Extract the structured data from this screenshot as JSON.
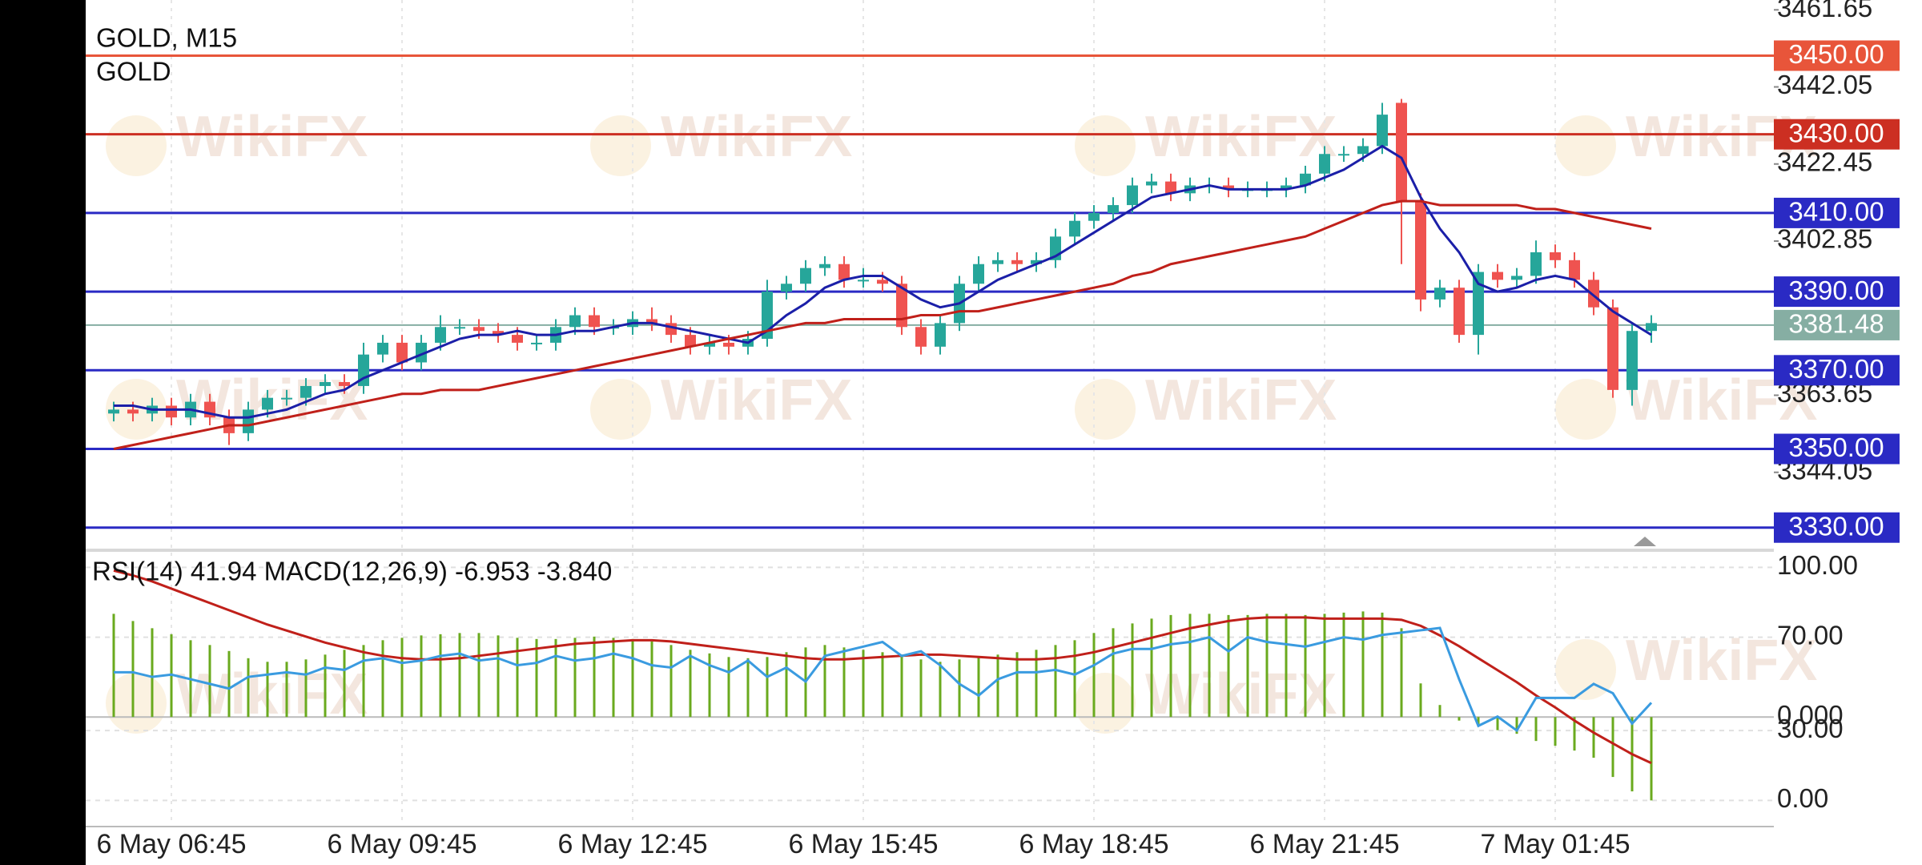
{
  "watermark": "WikiFX",
  "chart_data": [
    {
      "type": "candlestick",
      "title": "GOLD, M15",
      "subtitle": "GOLD",
      "categories": [
        null,
        null,
        null,
        "6 May 06:45",
        null,
        null,
        null,
        null,
        null,
        null,
        null,
        null,
        null,
        null,
        null,
        "6 May 09:45",
        null,
        null,
        null,
        null,
        null,
        null,
        null,
        null,
        null,
        null,
        null,
        "6 May 12:45",
        null,
        null,
        null,
        null,
        null,
        null,
        null,
        null,
        null,
        null,
        null,
        "6 May 15:45",
        null,
        null,
        null,
        null,
        null,
        null,
        null,
        null,
        null,
        null,
        null,
        "6 May 18:45",
        null,
        null,
        null,
        null,
        null,
        null,
        null,
        null,
        null,
        null,
        null,
        "6 May 21:45",
        null,
        null,
        null,
        null,
        null,
        null,
        null,
        null,
        null,
        null,
        null,
        "7 May 01:45",
        null,
        null,
        null,
        null,
        null
      ],
      "open": [
        3359,
        3360,
        3359,
        3361,
        3358,
        3362,
        3358,
        3354,
        3360,
        3363,
        3363,
        3366,
        3367,
        3366,
        3374,
        3377,
        3372,
        3377,
        3381,
        3381,
        3380,
        3379,
        3377,
        3377,
        3381,
        3384,
        3381,
        3381,
        3383,
        3382,
        3379,
        3376,
        3377,
        3376,
        3378,
        3390,
        3392,
        3396,
        3397,
        3393,
        3393,
        3392,
        3381,
        3376,
        3382,
        3392,
        3397,
        3398,
        3397,
        3398,
        3404,
        3408,
        3410,
        3412,
        3417,
        3418,
        3415,
        3417,
        3417,
        3416,
        3416,
        3416,
        3417,
        3420,
        3425,
        3425,
        3427,
        3438,
        3413,
        3388,
        3391,
        3379,
        3395,
        3393,
        3394,
        3400,
        3398,
        3393,
        3386,
        3365,
        3380
      ],
      "high": [
        3362,
        3362,
        3363,
        3363,
        3364,
        3364,
        3360,
        3362,
        3365,
        3365,
        3368,
        3369,
        3369,
        3377,
        3379,
        3379,
        3379,
        3384,
        3383,
        3383,
        3382,
        3381,
        3379,
        3383,
        3386,
        3386,
        3383,
        3385,
        3386,
        3384,
        3381,
        3379,
        3379,
        3380,
        3393,
        3394,
        3398,
        3399,
        3399,
        3396,
        3395,
        3394,
        3383,
        3384,
        3394,
        3399,
        3400,
        3400,
        3400,
        3406,
        3410,
        3412,
        3414,
        3419,
        3420,
        3420,
        3419,
        3419,
        3419,
        3418,
        3418,
        3419,
        3422,
        3427,
        3427,
        3429,
        3438,
        3439,
        3415,
        3393,
        3393,
        3397,
        3397,
        3396,
        3403,
        3402,
        3400,
        3395,
        3388,
        3382,
        3384
      ],
      "low": [
        3357,
        3357,
        3357,
        3356,
        3356,
        3356,
        3351,
        3352,
        3358,
        3361,
        3361,
        3364,
        3364,
        3364,
        3372,
        3370,
        3370,
        3375,
        3379,
        3378,
        3377,
        3375,
        3375,
        3375,
        3379,
        3379,
        3379,
        3379,
        3380,
        3377,
        3374,
        3374,
        3374,
        3374,
        3376,
        3388,
        3390,
        3394,
        3391,
        3391,
        3390,
        3379,
        3374,
        3374,
        3380,
        3390,
        3395,
        3395,
        3395,
        3396,
        3402,
        3406,
        3408,
        3410,
        3415,
        3413,
        3413,
        3415,
        3414,
        3414,
        3414,
        3414,
        3415,
        3418,
        3423,
        3423,
        3425,
        3397,
        3385,
        3386,
        3377,
        3374,
        3391,
        3391,
        3392,
        3396,
        3391,
        3384,
        3363,
        3361,
        3377
      ],
      "close": [
        3360,
        3359,
        3361,
        3358,
        3362,
        3358,
        3354,
        3360,
        3363,
        3363,
        3366,
        3367,
        3366,
        3374,
        3377,
        3372,
        3377,
        3381,
        3381,
        3380,
        3379,
        3377,
        3377,
        3381,
        3384,
        3381,
        3381,
        3383,
        3382,
        3379,
        3376,
        3377,
        3376,
        3378,
        3390,
        3392,
        3396,
        3397,
        3393,
        3393,
        3392,
        3381,
        3376,
        3382,
        3392,
        3397,
        3398,
        3397,
        3398,
        3404,
        3408,
        3410,
        3412,
        3417,
        3418,
        3415,
        3417,
        3417,
        3416,
        3416,
        3416,
        3417,
        3420,
        3425,
        3425,
        3427,
        3435,
        3413,
        3388,
        3391,
        3379,
        3395,
        3393,
        3394,
        3400,
        3398,
        3393,
        3386,
        3365,
        3380,
        3382
      ],
      "up_color": "#26a69a",
      "down_color": "#ef5350",
      "series": [
        {
          "color": "#1b1fa8",
          "values": [
            3361,
            3361,
            3360,
            3360,
            3360,
            3359,
            3358,
            3358,
            3359,
            3360,
            3362,
            3364,
            3365,
            3368,
            3370,
            3372,
            3374,
            3376,
            3378,
            3379,
            3379,
            3380,
            3379,
            3379,
            3380,
            3380,
            3381,
            3382,
            3382,
            3381,
            3380,
            3379,
            3378,
            3377,
            3380,
            3384,
            3387,
            3391,
            3393,
            3394,
            3394,
            3391,
            3388,
            3386,
            3387,
            3390,
            3393,
            3395,
            3397,
            3399,
            3402,
            3405,
            3408,
            3411,
            3414,
            3415,
            3416,
            3417,
            3416,
            3416,
            3416,
            3416,
            3417,
            3419,
            3421,
            3424,
            3427,
            3424,
            3414,
            3406,
            3400,
            3392,
            3390,
            3391,
            3393,
            3394,
            3393,
            3389,
            3385,
            3382,
            3379
          ]
        },
        {
          "color": "#c0201a",
          "values": [
            3350,
            3351,
            3352,
            3353,
            3354,
            3355,
            3356,
            3356,
            3357,
            3358,
            3359,
            3360,
            3361,
            3362,
            3363,
            3364,
            3364,
            3365,
            3365,
            3365,
            3366,
            3367,
            3368,
            3369,
            3370,
            3371,
            3372,
            3373,
            3374,
            3375,
            3376,
            3377,
            3378,
            3379,
            3380,
            3381,
            3382,
            3382,
            3383,
            3383,
            3383,
            3383,
            3384,
            3384,
            3385,
            3385,
            3386,
            3387,
            3388,
            3389,
            3390,
            3391,
            3392,
            3394,
            3395,
            3397,
            3398,
            3399,
            3400,
            3401,
            3402,
            3403,
            3404,
            3406,
            3408,
            3410,
            3412,
            3413,
            3413,
            3412,
            3412,
            3412,
            3412,
            3412,
            3411,
            3411,
            3410,
            3409,
            3408,
            3407,
            3406
          ]
        }
      ],
      "ylim": [
        3324.85,
        3464.15
      ],
      "yticks": [
        3461.65,
        3442.05,
        3422.45,
        3402.85,
        3363.65,
        3344.05
      ],
      "levels": [
        {
          "value": 3450,
          "label": "3450.00",
          "color": "#e8553a"
        },
        {
          "value": 3430,
          "label": "3430.00",
          "color": "#cc2f22"
        },
        {
          "value": 3410,
          "label": "3410.00",
          "color": "#2a2ac4"
        },
        {
          "value": 3390,
          "label": "3390.00",
          "color": "#2a2ac4"
        },
        {
          "value": 3370,
          "label": "3370.00",
          "color": "#2a2ac4"
        },
        {
          "value": 3350,
          "label": "3350.00",
          "color": "#2a2ac4"
        },
        {
          "value": 3330,
          "label": "3330.00",
          "color": "#2a2ac4"
        }
      ],
      "price": {
        "value": 3381.48,
        "color": "#86aea3"
      }
    },
    {
      "type": "indicator",
      "title": "RSI(14) 41.94 MACD(12,26,9) -6.953 -3.840",
      "series": [
        {
          "type": "bar",
          "axis": "y2",
          "color": "#6aaa1e",
          "values": [
            8.6,
            8.0,
            7.4,
            6.9,
            6.4,
            6.0,
            5.5,
            4.9,
            4.6,
            4.6,
            4.8,
            5.2,
            5.6,
            6.0,
            6.4,
            6.6,
            6.8,
            6.9,
            7.0,
            7.0,
            6.8,
            6.6,
            6.5,
            6.5,
            6.6,
            6.7,
            6.6,
            6.5,
            6.3,
            6.0,
            5.6,
            5.3,
            5.0,
            4.9,
            5.0,
            5.4,
            5.8,
            6.0,
            5.8,
            5.6,
            5.4,
            5.2,
            4.8,
            4.6,
            4.8,
            5.0,
            5.2,
            5.4,
            5.6,
            6.0,
            6.4,
            7.0,
            7.4,
            7.8,
            8.2,
            8.5,
            8.6,
            8.6,
            8.5,
            8.5,
            8.6,
            8.6,
            8.5,
            8.6,
            8.7,
            8.8,
            8.7,
            7.4,
            2.8,
            1.0,
            -0.3,
            -0.6,
            -1.1,
            -1.4,
            -2.0,
            -2.4,
            -2.8,
            -3.4,
            -5.0,
            -6.2,
            -6.953
          ]
        },
        {
          "type": "line",
          "axis": "y2",
          "color": "#c0201a",
          "values": [
            12.2,
            11.8,
            11.3,
            10.7,
            10.1,
            9.5,
            8.9,
            8.3,
            7.7,
            7.2,
            6.7,
            6.2,
            5.8,
            5.4,
            5.1,
            4.9,
            4.8,
            4.8,
            4.9,
            5.1,
            5.3,
            5.5,
            5.7,
            5.9,
            6.1,
            6.2,
            6.3,
            6.4,
            6.4,
            6.3,
            6.1,
            5.9,
            5.7,
            5.5,
            5.3,
            5.1,
            4.9,
            4.8,
            4.8,
            4.9,
            5.0,
            5.1,
            5.2,
            5.2,
            5.1,
            5.0,
            4.9,
            4.8,
            4.8,
            4.9,
            5.1,
            5.4,
            5.8,
            6.2,
            6.6,
            7.0,
            7.4,
            7.7,
            8.0,
            8.2,
            8.3,
            8.3,
            8.3,
            8.2,
            8.2,
            8.2,
            8.2,
            8.1,
            7.6,
            6.8,
            5.9,
            4.9,
            3.9,
            2.9,
            1.8,
            0.8,
            -0.3,
            -1.3,
            -2.2,
            -3.1,
            -3.84
          ]
        },
        {
          "type": "line",
          "axis": "y",
          "color": "#3a9be0",
          "values": [
            55,
            55,
            53,
            54,
            52,
            50,
            48,
            53,
            54,
            55,
            54,
            57,
            56,
            60,
            61,
            59,
            60,
            62,
            63,
            60,
            61,
            58,
            59,
            62,
            60,
            61,
            63,
            61,
            58,
            57,
            62,
            58,
            55,
            60,
            53,
            57,
            51,
            62,
            64,
            66,
            68,
            62,
            64,
            58,
            50,
            45,
            52,
            55,
            55,
            56,
            54,
            58,
            63,
            65,
            65,
            67,
            68,
            70,
            64,
            70,
            68,
            67,
            66,
            68,
            70,
            69,
            71,
            72,
            73,
            74,
            52,
            32,
            36,
            30,
            44,
            44,
            44,
            50,
            46,
            33,
            41.94
          ]
        }
      ],
      "ylim": [
        -10.5,
        106.3
      ],
      "yticks": [
        {
          "value": 100,
          "label": "100.00"
        },
        {
          "value": 70,
          "label": "70.00"
        },
        {
          "value": 30,
          "label": "30.00"
        },
        {
          "value": 0,
          "label": "0.00"
        }
      ],
      "y2lim": [
        -9,
        13.7
      ],
      "y2ticks": [
        {
          "value": 0,
          "label": "0.000"
        }
      ]
    }
  ]
}
